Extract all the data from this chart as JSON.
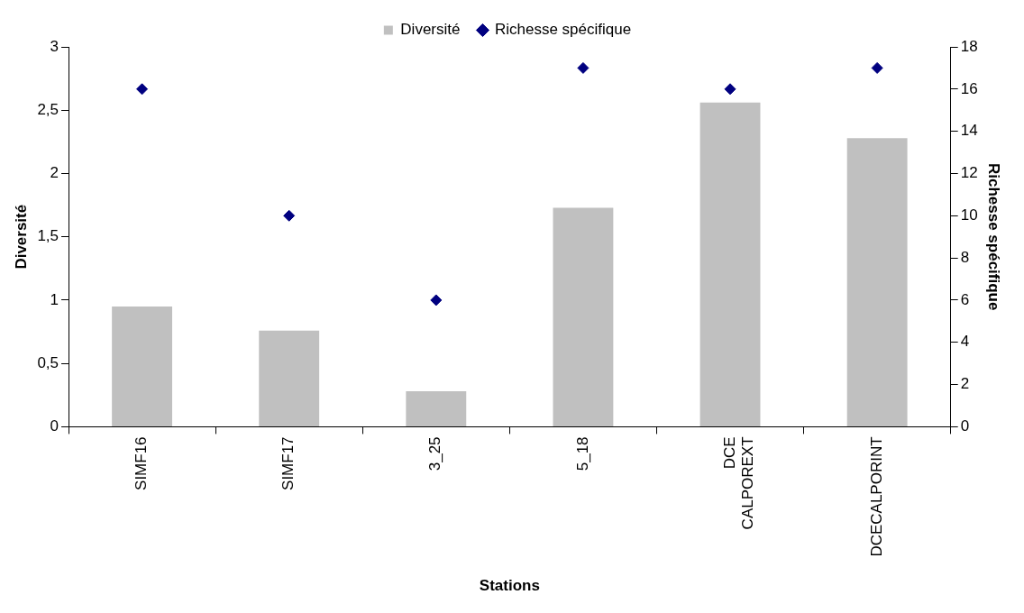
{
  "chart_data": {
    "type": "bar",
    "categories": [
      "SIMF16",
      "SIMF17",
      "3_25",
      "5_18",
      "DCE CALPOREXT",
      "DCECALPORINT"
    ],
    "xlabel": "Stations",
    "ylabel": "Diversité",
    "y2label": "Richesse spécifique",
    "series": [
      {
        "name": "Diversité",
        "color": "#c0c0c0",
        "values": [
          0.95,
          0.76,
          0.28,
          1.73,
          2.56,
          2.28
        ]
      },
      {
        "name": "Richesse spécifique",
        "type": "scatter",
        "axis": "y2",
        "color": "#000080",
        "marker": "diamond",
        "x": [
          "SIMF16",
          "SIMF17",
          "3_25",
          "5_18",
          "DCE CALPOREXT",
          "DCECALPORINT"
        ],
        "values": [
          16,
          10,
          6,
          17,
          16,
          17
        ]
      }
    ],
    "ylim": [
      0,
      3
    ],
    "yticks": [
      0,
      {
        "value": 0.5,
        "label": "0,5"
      },
      1,
      {
        "value": 1.5,
        "label": "1,5"
      },
      2,
      {
        "value": 2.5,
        "label": "2,5"
      },
      3
    ],
    "y2lim": [
      0,
      18
    ],
    "y2ticks": [
      0,
      2,
      4,
      6,
      8,
      10,
      12,
      14,
      16,
      18
    ],
    "legend": "top",
    "grid": false
  }
}
